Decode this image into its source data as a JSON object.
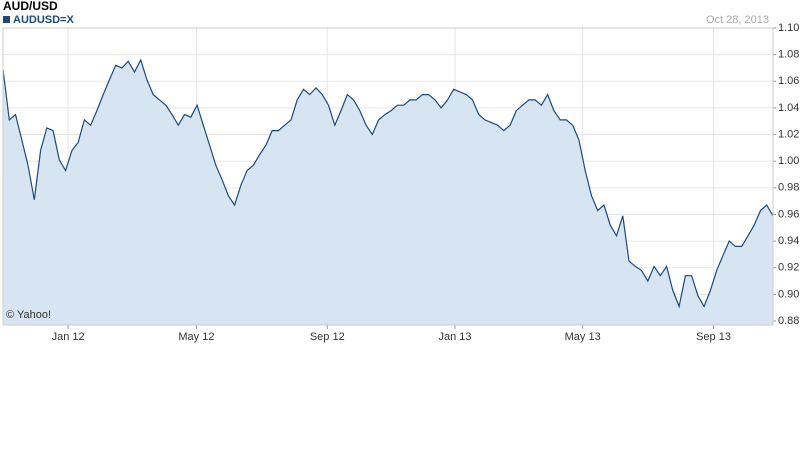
{
  "chart_data": {
    "type": "area",
    "title": "AUD/USD",
    "date_label": "Oct 28, 2013",
    "source": "© Yahoo!",
    "series": [
      {
        "name": "AUDUSD=X",
        "color": "#1c4a7c",
        "fill": "#d6e5f1",
        "values": [
          1.069,
          1.031,
          1.035,
          1.016,
          0.997,
          0.971,
          1.008,
          1.025,
          1.023,
          1.001,
          0.993,
          1.008,
          1.014,
          1.031,
          1.027,
          1.038,
          1.05,
          1.061,
          1.072,
          1.07,
          1.075,
          1.067,
          1.076,
          1.061,
          1.05,
          1.046,
          1.042,
          1.035,
          1.027,
          1.035,
          1.033,
          1.042,
          1.027,
          1.012,
          0.997,
          0.986,
          0.974,
          0.967,
          0.982,
          0.993,
          0.997,
          1.005,
          1.012,
          1.023,
          1.023,
          1.027,
          1.031,
          1.046,
          1.054,
          1.05,
          1.055,
          1.05,
          1.042,
          1.027,
          1.038,
          1.05,
          1.046,
          1.038,
          1.027,
          1.02,
          1.031,
          1.035,
          1.038,
          1.042,
          1.042,
          1.046,
          1.046,
          1.05,
          1.05,
          1.046,
          1.04,
          1.046,
          1.054,
          1.052,
          1.05,
          1.046,
          1.035,
          1.031,
          1.029,
          1.027,
          1.023,
          1.027,
          1.038,
          1.042,
          1.046,
          1.046,
          1.042,
          1.05,
          1.038,
          1.031,
          1.031,
          1.027,
          1.016,
          0.993,
          0.974,
          0.963,
          0.967,
          0.952,
          0.944,
          0.959,
          0.925,
          0.921,
          0.918,
          0.91,
          0.921,
          0.914,
          0.921,
          0.903,
          0.891,
          0.914,
          0.914,
          0.899,
          0.891,
          0.903,
          0.918,
          0.929,
          0.94,
          0.936,
          0.936,
          0.944,
          0.952,
          0.963,
          0.967,
          0.959
        ]
      }
    ],
    "xlim": [
      0,
      123
    ],
    "xticks": [
      {
        "value": 10.4,
        "label": "Jan 12"
      },
      {
        "value": 30.9,
        "label": "May 12"
      },
      {
        "value": 51.8,
        "label": "Sep 12"
      },
      {
        "value": 72.2,
        "label": "Jan 13"
      },
      {
        "value": 92.6,
        "label": "May 13"
      },
      {
        "value": 113.5,
        "label": "Sep 13"
      }
    ],
    "ylim": [
      0.877,
      1.1
    ],
    "yticks": [
      {
        "value": 0.88,
        "label": "0.88"
      },
      {
        "value": 0.9,
        "label": "0.90"
      },
      0.92,
      0.94,
      0.96,
      0.98,
      {
        "value": 1.0,
        "label": "1.00"
      },
      1.02,
      1.04,
      1.06,
      1.08,
      {
        "value": 1.1,
        "label": "1.10"
      }
    ],
    "grid": true
  }
}
